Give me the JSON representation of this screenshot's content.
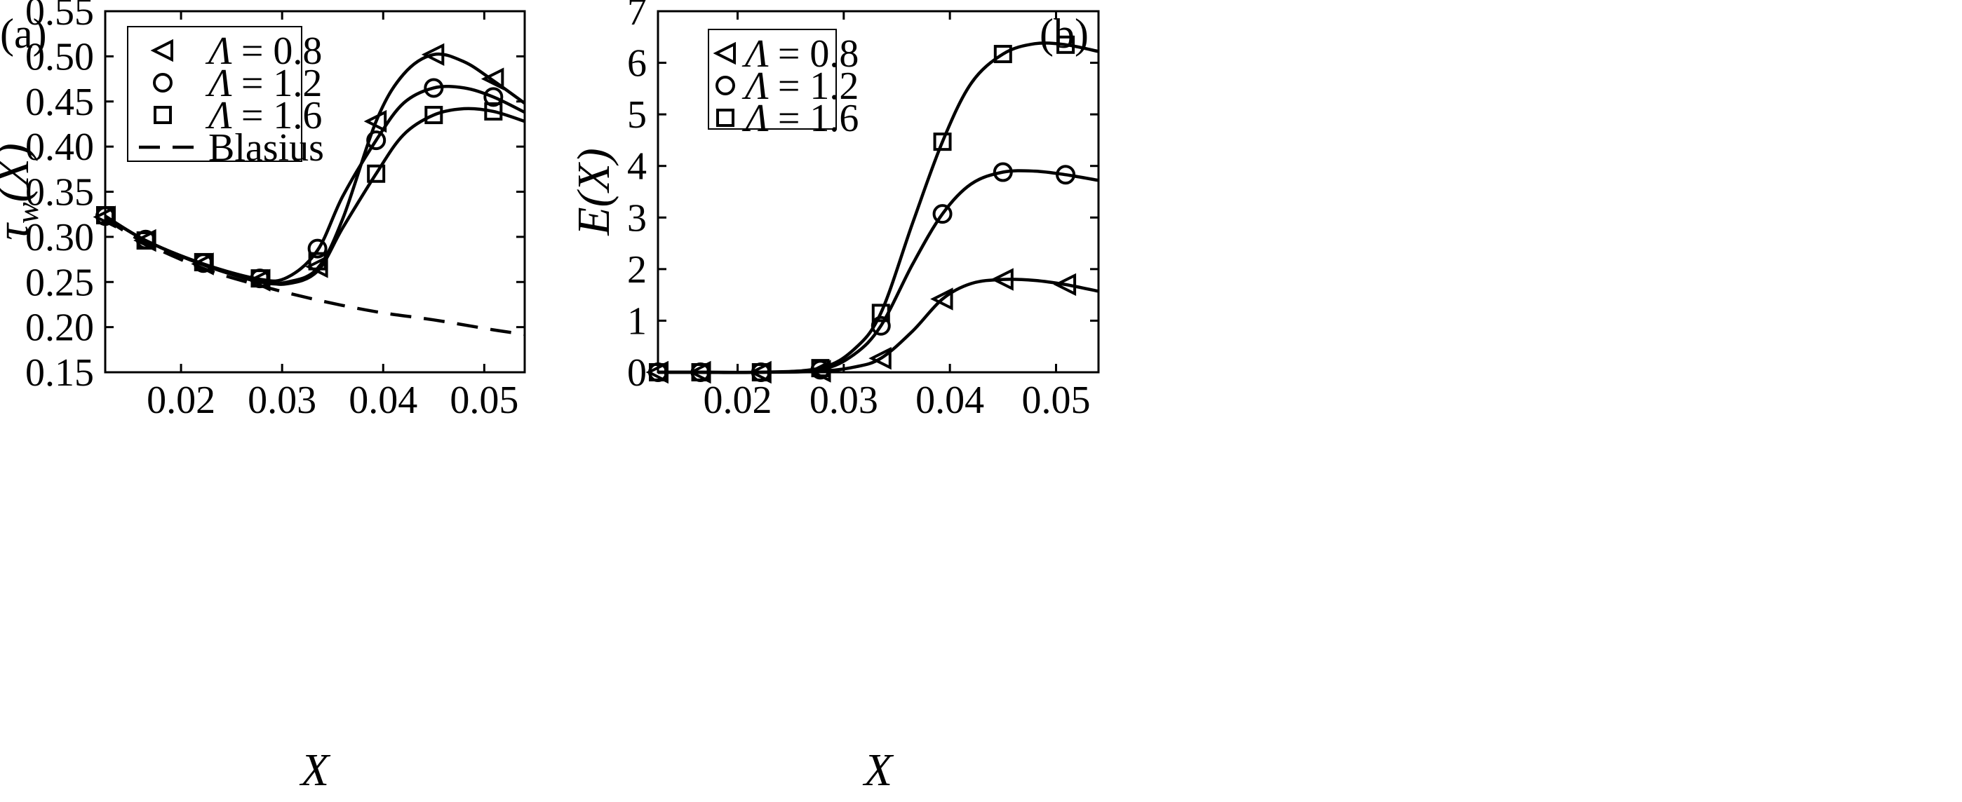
{
  "chart_data": [
    {
      "type": "line",
      "panel_label": "(a)",
      "xlabel": "X",
      "ylabel": "τw(X)",
      "ylabel_main": "τ",
      "ylabel_sub": "w",
      "ylabel_arg": "(X)",
      "xlim": [
        0.0125,
        0.054
      ],
      "ylim": [
        0.15,
        0.55
      ],
      "xticks": [
        0.02,
        0.03,
        0.04,
        0.05
      ],
      "xtick_labels": [
        "0.02",
        "0.03",
        "0.04",
        "0.05"
      ],
      "yticks": [
        0.15,
        0.2,
        0.25,
        0.3,
        0.35,
        0.4,
        0.45,
        0.5,
        0.55
      ],
      "ytick_labels": [
        "0.15",
        "0.20",
        "0.25",
        "0.30",
        "0.35",
        "0.40",
        "0.45",
        "0.50",
        "0.55"
      ],
      "legend_position": "top-left",
      "series": [
        {
          "name": "Λ = 0.8",
          "legend_symbol": "Λ",
          "legend_value": "= 0.8",
          "marker": "triangle-left",
          "style": "solid",
          "x": [
            0.0125,
            0.0165,
            0.0222,
            0.0278,
            0.0305,
            0.0335,
            0.036,
            0.0393,
            0.042,
            0.045,
            0.048,
            0.0509,
            0.054
          ],
          "y": [
            0.323,
            0.296,
            0.269,
            0.25,
            0.25,
            0.265,
            0.32,
            0.428,
            0.48,
            0.502,
            0.494,
            0.473,
            0.448
          ],
          "marker_x": [
            0.0125,
            0.0165,
            0.0222,
            0.0278,
            0.0335,
            0.0393,
            0.045,
            0.0509
          ],
          "marker_y": [
            0.322,
            0.296,
            0.27,
            0.252,
            0.267,
            0.428,
            0.502,
            0.475
          ]
        },
        {
          "name": "Λ = 1.2",
          "legend_symbol": "Λ",
          "legend_value": "= 1.2",
          "marker": "circle",
          "style": "solid",
          "x": [
            0.0125,
            0.0165,
            0.0222,
            0.0278,
            0.0305,
            0.0335,
            0.036,
            0.0393,
            0.042,
            0.045,
            0.048,
            0.0509,
            0.054
          ],
          "y": [
            0.323,
            0.296,
            0.27,
            0.253,
            0.255,
            0.285,
            0.345,
            0.407,
            0.448,
            0.465,
            0.465,
            0.455,
            0.438
          ],
          "marker_x": [
            0.0125,
            0.0165,
            0.0222,
            0.0278,
            0.0335,
            0.0393,
            0.045,
            0.0509
          ],
          "marker_y": [
            0.323,
            0.297,
            0.271,
            0.254,
            0.287,
            0.407,
            0.465,
            0.455
          ]
        },
        {
          "name": "Λ = 1.6",
          "legend_symbol": "Λ",
          "legend_value": "= 1.6",
          "marker": "square",
          "style": "solid",
          "x": [
            0.0125,
            0.0165,
            0.0222,
            0.0278,
            0.0305,
            0.0335,
            0.036,
            0.0393,
            0.042,
            0.045,
            0.048,
            0.0509,
            0.054
          ],
          "y": [
            0.323,
            0.296,
            0.27,
            0.252,
            0.248,
            0.262,
            0.31,
            0.37,
            0.413,
            0.435,
            0.442,
            0.439,
            0.428
          ],
          "marker_x": [
            0.0125,
            0.0165,
            0.0222,
            0.0278,
            0.0335,
            0.0393,
            0.045,
            0.0509
          ],
          "marker_y": [
            0.324,
            0.296,
            0.272,
            0.254,
            0.273,
            0.37,
            0.435,
            0.439
          ]
        },
        {
          "name": "Blasius",
          "legend_symbol": "",
          "legend_value": "Blasius",
          "marker": "none",
          "style": "dashed",
          "x": [
            0.0125,
            0.0165,
            0.0222,
            0.0278,
            0.0335,
            0.0393,
            0.045,
            0.0509,
            0.054
          ],
          "y": [
            0.32,
            0.293,
            0.265,
            0.246,
            0.23,
            0.217,
            0.208,
            0.197,
            0.192
          ],
          "marker_x": [],
          "marker_y": []
        }
      ]
    },
    {
      "type": "line",
      "panel_label": "(b)",
      "xlabel": "X",
      "ylabel": "E(X)",
      "xlim": [
        0.0125,
        0.054
      ],
      "ylim": [
        0,
        7
      ],
      "xticks": [
        0.02,
        0.03,
        0.04,
        0.05
      ],
      "xtick_labels": [
        "0.02",
        "0.03",
        "0.04",
        "0.05"
      ],
      "yticks": [
        0,
        1,
        2,
        3,
        4,
        5,
        6,
        7
      ],
      "ytick_labels": [
        "0",
        "1",
        "2",
        "3",
        "4",
        "5",
        "6",
        "7"
      ],
      "legend_position": "top-left",
      "series": [
        {
          "name": "Λ = 0.8",
          "legend_symbol": "Λ",
          "legend_value": "= 0.8",
          "marker": "triangle-left",
          "style": "solid",
          "x": [
            0.0125,
            0.0165,
            0.0222,
            0.0278,
            0.031,
            0.0335,
            0.0365,
            0.0393,
            0.042,
            0.045,
            0.048,
            0.0509,
            0.054
          ],
          "y": [
            0,
            0,
            0,
            0.02,
            0.1,
            0.27,
            0.8,
            1.42,
            1.72,
            1.8,
            1.78,
            1.7,
            1.57
          ],
          "marker_x": [
            0.0125,
            0.0165,
            0.0222,
            0.0278,
            0.0335,
            0.0393,
            0.045,
            0.0509
          ],
          "marker_y": [
            0,
            0,
            0,
            0.02,
            0.27,
            1.42,
            1.8,
            1.7
          ]
        },
        {
          "name": "Λ = 1.2",
          "legend_symbol": "Λ",
          "legend_value": "= 1.2",
          "marker": "circle",
          "style": "solid",
          "x": [
            0.0125,
            0.0165,
            0.0222,
            0.0278,
            0.031,
            0.0335,
            0.0365,
            0.0393,
            0.042,
            0.045,
            0.048,
            0.0509,
            0.054
          ],
          "y": [
            0,
            0,
            0,
            0.05,
            0.35,
            0.9,
            2.1,
            3.07,
            3.65,
            3.88,
            3.9,
            3.83,
            3.72
          ],
          "marker_x": [
            0.0125,
            0.0165,
            0.0222,
            0.0278,
            0.0335,
            0.0393,
            0.045,
            0.0509
          ],
          "marker_y": [
            0,
            0,
            0,
            0.05,
            0.9,
            3.07,
            3.88,
            3.83
          ]
        },
        {
          "name": "Λ = 1.6",
          "legend_symbol": "Λ",
          "legend_value": "= 1.6",
          "marker": "square",
          "style": "solid",
          "x": [
            0.0125,
            0.0165,
            0.0222,
            0.0278,
            0.031,
            0.0335,
            0.0365,
            0.0393,
            0.042,
            0.045,
            0.048,
            0.0509,
            0.054
          ],
          "y": [
            0,
            0,
            0,
            0.08,
            0.45,
            1.15,
            2.9,
            4.47,
            5.6,
            6.17,
            6.37,
            6.35,
            6.22
          ],
          "marker_x": [
            0.0125,
            0.0165,
            0.0222,
            0.0278,
            0.0335,
            0.0393,
            0.045,
            0.0509
          ],
          "marker_y": [
            0,
            0,
            0,
            0.08,
            1.15,
            4.47,
            6.17,
            6.35
          ]
        }
      ]
    }
  ]
}
